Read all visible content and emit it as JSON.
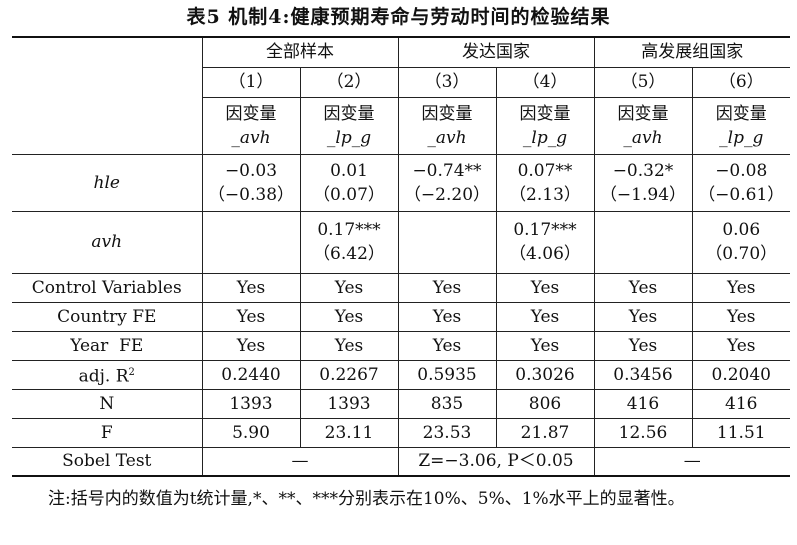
{
  "title": "表5  机制4:健康预期寿命与劳动时间的检验结果",
  "groups": [
    "全部样本",
    "发达国家",
    "高发展组国家"
  ],
  "columns": [
    "（1）",
    "（2）",
    "（3）",
    "（4）",
    "（5）",
    "（6）"
  ],
  "dep_prefix": "因变量",
  "dep_vars": [
    "_avh",
    "_lp_g",
    "_avh",
    "_lp_g",
    "_avh",
    "_lp_g"
  ],
  "rows": {
    "hle": {
      "label": "hle",
      "coef": [
        "−0.03",
        "0.01",
        "−0.74**",
        "0.07**",
        "−0.32*",
        "−0.08"
      ],
      "t": [
        "（−0.38）",
        "（0.07）",
        "（−2.20）",
        "（2.13）",
        "（−1.94）",
        "（−0.61）"
      ]
    },
    "avh": {
      "label": "avh",
      "coef": [
        "",
        "0.17***",
        "",
        "0.17***",
        "",
        "0.06"
      ],
      "t": [
        "",
        "（6.42）",
        "",
        "（4.06）",
        "",
        "（0.70）"
      ]
    },
    "control": {
      "label": "Control Variables",
      "values": [
        "Yes",
        "Yes",
        "Yes",
        "Yes",
        "Yes",
        "Yes"
      ]
    },
    "country": {
      "label": "Country FE",
      "values": [
        "Yes",
        "Yes",
        "Yes",
        "Yes",
        "Yes",
        "Yes"
      ]
    },
    "year": {
      "label": "Year  FE",
      "values": [
        "Yes",
        "Yes",
        "Yes",
        "Yes",
        "Yes",
        "Yes"
      ]
    },
    "adjr2": {
      "label": "adj. R",
      "sup": "2",
      "values": [
        "0.2440",
        "0.2267",
        "0.5935",
        "0.3026",
        "0.3456",
        "0.2040"
      ]
    },
    "n": {
      "label": "N",
      "values": [
        "1393",
        "1393",
        "835",
        "806",
        "416",
        "416"
      ]
    },
    "f": {
      "label": "F",
      "values": [
        "5.90",
        "23.11",
        "23.53",
        "21.87",
        "12.56",
        "11.51"
      ]
    },
    "sobel": {
      "label": "Sobel Test",
      "values": [
        "—",
        "Z=−3.06, P＜0.05",
        "—"
      ]
    }
  },
  "note": "注:括号内的数值为t统计量,*、**、***分别表示在10%、5%、1%水平上的显著性。"
}
